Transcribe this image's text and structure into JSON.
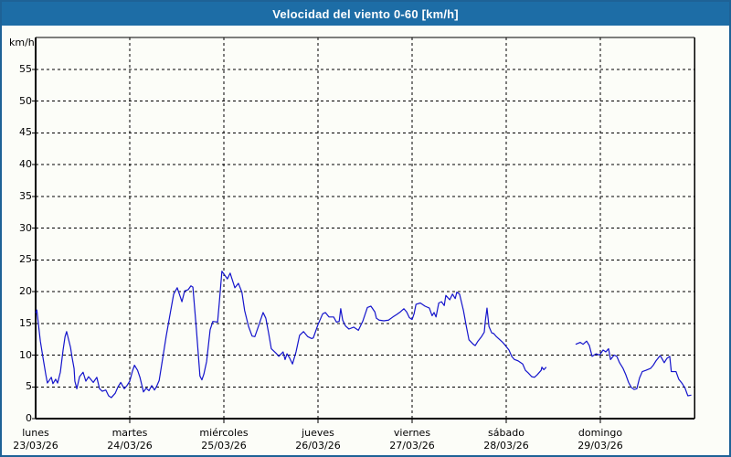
{
  "window": {
    "title": "Velocidad del viento 0-60 [km/h]"
  },
  "colors": {
    "titlebar_bg": "#1d6da6",
    "frame_border": "#1e6296",
    "background": "#fcfdf8",
    "series_line": "#1414cc",
    "grid": "#000000",
    "text": "#000000"
  },
  "chart_data": {
    "type": "line",
    "title": "Velocidad del viento 0-60 [km/h]",
    "ylabel": "km/h",
    "xlabel": "",
    "ylim": [
      0,
      60
    ],
    "yticks": [
      0,
      5,
      10,
      15,
      20,
      25,
      30,
      35,
      40,
      45,
      50,
      55
    ],
    "grid": "dashed",
    "legend": "none",
    "x_total_hours": 168,
    "hours_per_day": 24,
    "x_days": [
      {
        "name": "lunes",
        "date": "23/03/26"
      },
      {
        "name": "martes",
        "date": "24/03/26"
      },
      {
        "name": "miércoles",
        "date": "25/03/26"
      },
      {
        "name": "jueves",
        "date": "26/03/26"
      },
      {
        "name": "viernes",
        "date": "27/03/26"
      },
      {
        "name": "sábado",
        "date": "28/03/26"
      },
      {
        "name": "domingo",
        "date": "29/03/26"
      }
    ],
    "series": [
      {
        "name": "velocidad del viento",
        "unit": "km/h",
        "color": "#1414cc",
        "note": "data gap saturday ~10:00-18:00",
        "segments": [
          [
            [
              0,
              16.6
            ],
            [
              0.3,
              17.1
            ],
            [
              1.2,
              12.2
            ],
            [
              1.9,
              9.5
            ],
            [
              2.6,
              6.9
            ],
            [
              3.0,
              5.6
            ],
            [
              4.0,
              6.5
            ],
            [
              4.4,
              5.5
            ],
            [
              5.1,
              6.2
            ],
            [
              5.6,
              5.6
            ],
            [
              6.3,
              7.3
            ],
            [
              7.0,
              10.8
            ],
            [
              7.5,
              12.9
            ],
            [
              7.9,
              13.7
            ],
            [
              8.9,
              11.2
            ],
            [
              9.3,
              9.6
            ],
            [
              9.8,
              7.9
            ],
            [
              10.0,
              5.9
            ],
            [
              10.5,
              4.7
            ],
            [
              11.2,
              6.6
            ],
            [
              12.1,
              7.3
            ],
            [
              12.8,
              5.9
            ],
            [
              13.5,
              6.6
            ],
            [
              14.7,
              5.7
            ],
            [
              15.6,
              6.5
            ],
            [
              16.3,
              4.7
            ],
            [
              17.0,
              4.3
            ],
            [
              17.9,
              4.5
            ],
            [
              18.6,
              3.6
            ],
            [
              19.3,
              3.3
            ],
            [
              20.3,
              4.0
            ],
            [
              21.0,
              5.0
            ],
            [
              21.7,
              5.7
            ],
            [
              22.6,
              4.7
            ],
            [
              23.3,
              5.2
            ],
            [
              24.0,
              5.9
            ],
            [
              24.7,
              7.5
            ],
            [
              25.2,
              8.4
            ],
            [
              26.0,
              7.6
            ],
            [
              26.6,
              6.5
            ],
            [
              27.5,
              4.2
            ],
            [
              28.2,
              4.8
            ],
            [
              28.9,
              4.4
            ],
            [
              29.6,
              5.2
            ],
            [
              30.3,
              4.5
            ],
            [
              30.8,
              5.0
            ],
            [
              31.5,
              6.0
            ],
            [
              32.4,
              9.5
            ],
            [
              33.3,
              13.0
            ],
            [
              34.3,
              16.5
            ],
            [
              35.2,
              19.6
            ],
            [
              36.1,
              20.6
            ],
            [
              37.3,
              18.4
            ],
            [
              38.0,
              20.1
            ],
            [
              38.9,
              20.3
            ],
            [
              39.6,
              20.9
            ],
            [
              40.1,
              20.7
            ],
            [
              41.0,
              14.0
            ],
            [
              41.9,
              6.7
            ],
            [
              42.4,
              6.1
            ],
            [
              42.9,
              7.0
            ],
            [
              43.6,
              9.0
            ],
            [
              44.5,
              14.0
            ],
            [
              45.2,
              15.3
            ],
            [
              46.4,
              15.2
            ],
            [
              46.8,
              18.0
            ],
            [
              47.5,
              23.2
            ],
            [
              48.2,
              22.6
            ],
            [
              48.9,
              22.0
            ],
            [
              49.6,
              22.9
            ],
            [
              50.8,
              20.6
            ],
            [
              51.7,
              21.3
            ],
            [
              52.6,
              19.9
            ],
            [
              53.3,
              17.0
            ],
            [
              54.3,
              14.5
            ],
            [
              55.2,
              13.0
            ],
            [
              55.9,
              12.9
            ],
            [
              56.8,
              14.5
            ],
            [
              58.0,
              16.7
            ],
            [
              58.7,
              15.8
            ],
            [
              59.4,
              13.5
            ],
            [
              60.1,
              11.0
            ],
            [
              61.3,
              10.3
            ],
            [
              62.0,
              9.8
            ],
            [
              63.1,
              10.5
            ],
            [
              63.6,
              9.3
            ],
            [
              64.1,
              10.2
            ],
            [
              64.8,
              9.5
            ],
            [
              65.5,
              8.6
            ],
            [
              66.4,
              10.5
            ],
            [
              67.3,
              13.1
            ],
            [
              68.3,
              13.7
            ],
            [
              69.4,
              12.9
            ],
            [
              70.4,
              12.6
            ],
            [
              70.8,
              12.7
            ],
            [
              72.0,
              14.8
            ],
            [
              73.2,
              16.5
            ],
            [
              73.9,
              16.7
            ],
            [
              74.8,
              16.0
            ],
            [
              76.0,
              16.0
            ],
            [
              76.7,
              15.2
            ],
            [
              77.4,
              15.3
            ],
            [
              77.8,
              17.3
            ],
            [
              78.3,
              15.5
            ],
            [
              79.0,
              14.6
            ],
            [
              79.9,
              14.1
            ],
            [
              81.1,
              14.4
            ],
            [
              82.3,
              13.9
            ],
            [
              83.4,
              15.3
            ],
            [
              84.6,
              17.5
            ],
            [
              85.5,
              17.7
            ],
            [
              86.5,
              16.8
            ],
            [
              86.9,
              15.8
            ],
            [
              87.6,
              15.5
            ],
            [
              88.8,
              15.4
            ],
            [
              90.0,
              15.5
            ],
            [
              91.1,
              16.0
            ],
            [
              92.1,
              16.4
            ],
            [
              93.0,
              16.8
            ],
            [
              93.9,
              17.3
            ],
            [
              94.6,
              16.8
            ],
            [
              95.3,
              15.9
            ],
            [
              96.0,
              15.6
            ],
            [
              96.5,
              16.5
            ],
            [
              97.0,
              18.0
            ],
            [
              98.1,
              18.2
            ],
            [
              99.3,
              17.7
            ],
            [
              100.4,
              17.4
            ],
            [
              101.1,
              16.2
            ],
            [
              101.6,
              16.7
            ],
            [
              102.1,
              16.0
            ],
            [
              102.8,
              18.2
            ],
            [
              103.5,
              18.4
            ],
            [
              104.2,
              17.8
            ],
            [
              104.6,
              19.4
            ],
            [
              105.6,
              18.7
            ],
            [
              106.3,
              19.6
            ],
            [
              107.0,
              18.9
            ],
            [
              107.4,
              19.9
            ],
            [
              108.1,
              19.6
            ],
            [
              109.1,
              17.0
            ],
            [
              109.8,
              14.6
            ],
            [
              110.5,
              12.4
            ],
            [
              111.6,
              11.7
            ],
            [
              112.1,
              11.5
            ],
            [
              112.8,
              12.2
            ],
            [
              113.7,
              12.9
            ],
            [
              114.4,
              13.6
            ],
            [
              114.7,
              15.5
            ],
            [
              115.1,
              17.4
            ],
            [
              115.6,
              14.5
            ],
            [
              116.3,
              13.5
            ],
            [
              116.8,
              13.4
            ],
            [
              117.5,
              12.9
            ],
            [
              118.4,
              12.4
            ],
            [
              119.1,
              12.0
            ],
            [
              119.8,
              11.5
            ],
            [
              120.7,
              10.8
            ],
            [
              121.4,
              9.8
            ],
            [
              122.1,
              9.3
            ],
            [
              123.0,
              9.1
            ],
            [
              124.2,
              8.6
            ],
            [
              124.9,
              7.6
            ],
            [
              125.6,
              7.2
            ],
            [
              126.5,
              6.6
            ],
            [
              127.2,
              6.5
            ],
            [
              127.9,
              6.9
            ],
            [
              128.9,
              7.6
            ],
            [
              129.1,
              8.1
            ],
            [
              129.6,
              7.7
            ],
            [
              130.2,
              8.1
            ]
          ],
          [
            [
              137.7,
              11.7
            ],
            [
              138.9,
              12.0
            ],
            [
              139.6,
              11.7
            ],
            [
              140.5,
              12.2
            ],
            [
              141.2,
              11.5
            ],
            [
              141.9,
              9.8
            ],
            [
              142.9,
              10.2
            ],
            [
              143.8,
              10.0
            ],
            [
              144.7,
              10.8
            ],
            [
              145.4,
              10.5
            ],
            [
              146.1,
              11.0
            ],
            [
              146.6,
              9.3
            ],
            [
              147.5,
              10.0
            ],
            [
              148.2,
              9.8
            ],
            [
              148.9,
              8.8
            ],
            [
              149.8,
              7.9
            ],
            [
              150.5,
              6.9
            ],
            [
              151.2,
              5.7
            ],
            [
              151.9,
              4.9
            ],
            [
              152.6,
              4.6
            ],
            [
              153.3,
              4.7
            ],
            [
              154.0,
              6.4
            ],
            [
              154.7,
              7.4
            ],
            [
              155.6,
              7.6
            ],
            [
              156.8,
              7.9
            ],
            [
              157.5,
              8.4
            ],
            [
              158.2,
              9.1
            ],
            [
              159.1,
              9.8
            ],
            [
              159.3,
              9.9
            ],
            [
              160.3,
              8.8
            ],
            [
              161.0,
              9.5
            ],
            [
              161.7,
              9.8
            ],
            [
              162.1,
              7.4
            ],
            [
              163.3,
              7.4
            ],
            [
              164.0,
              6.2
            ],
            [
              164.9,
              5.5
            ],
            [
              165.6,
              4.8
            ],
            [
              166.3,
              3.6
            ],
            [
              167.2,
              3.7
            ]
          ]
        ]
      }
    ]
  }
}
